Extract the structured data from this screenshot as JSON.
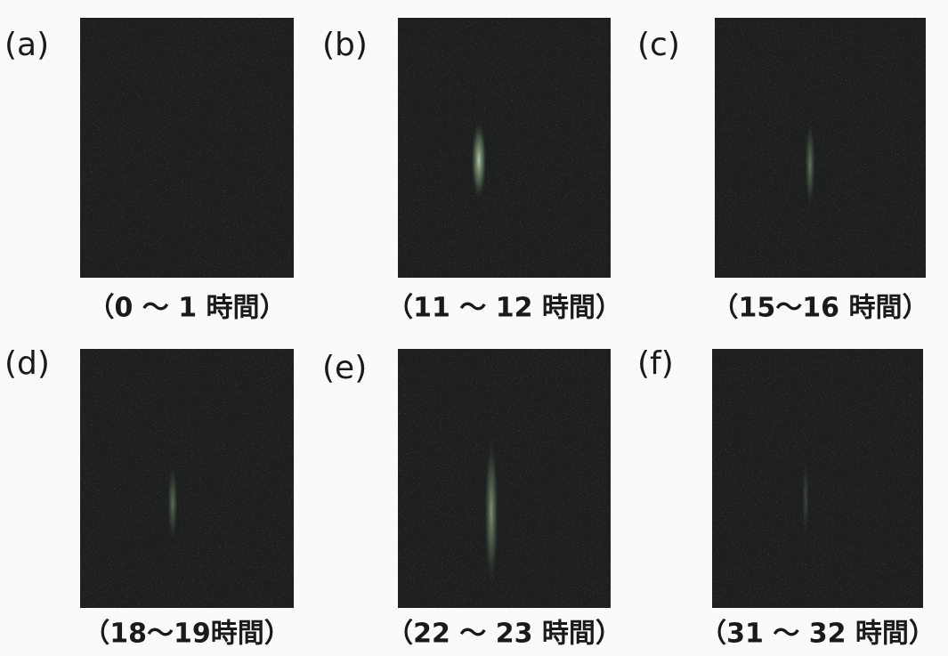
{
  "panels": [
    {
      "label": "(a)",
      "caption": "（0 ～ 1 時間）"
    },
    {
      "label": "(b)",
      "caption": "（11 ～ 12 時間）"
    },
    {
      "label": "(c)",
      "caption": "（15～16 時間）"
    },
    {
      "label": "(d)",
      "caption": "（18～19時間）"
    },
    {
      "label": "(e)",
      "caption": "（22 ～ 23 時間）"
    },
    {
      "label": "(f)",
      "caption": "（31 ～ 32 時間）"
    }
  ]
}
